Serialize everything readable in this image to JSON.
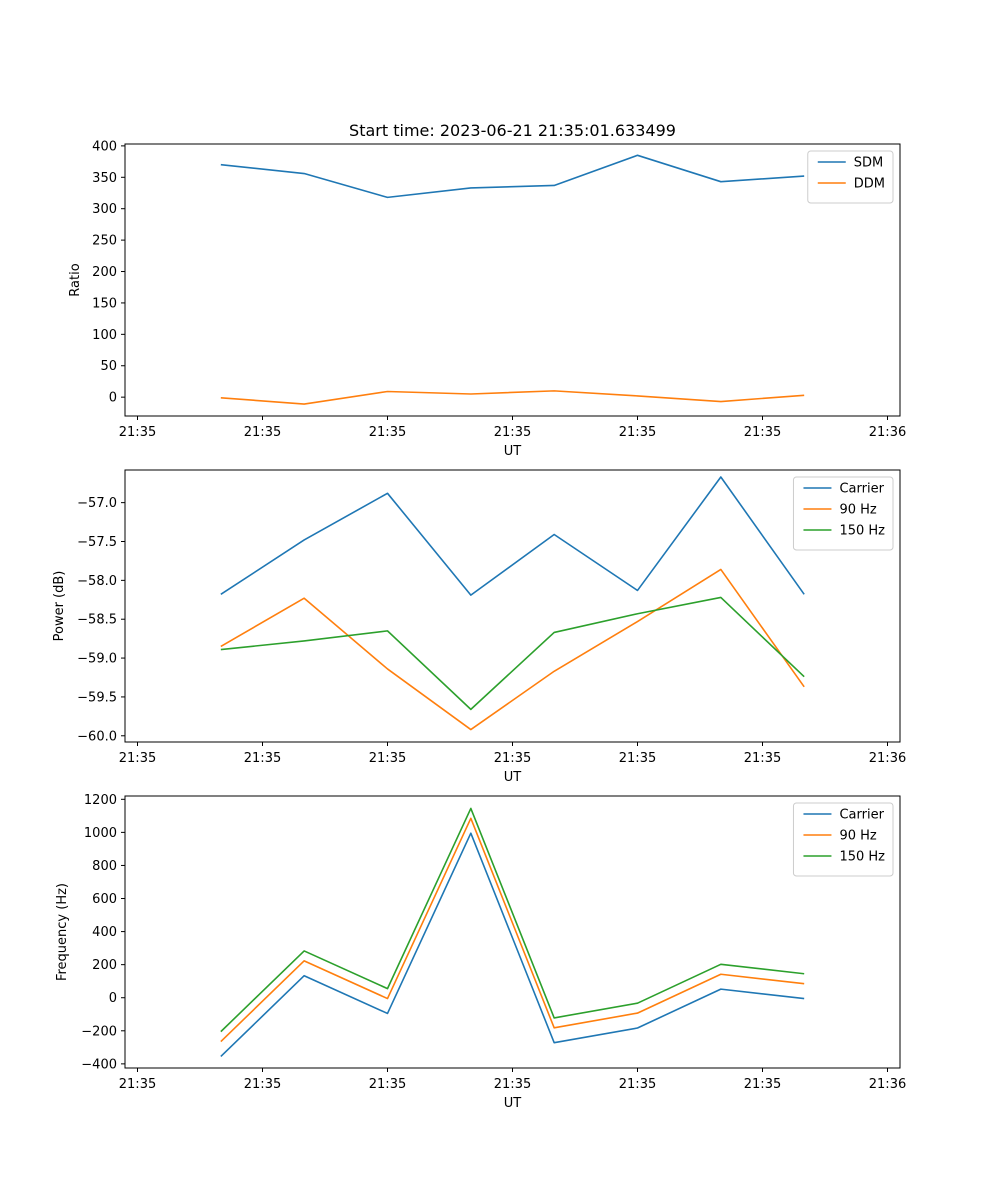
{
  "title": "Start time: 2023-06-21 21:35:01.633499",
  "chart_data": [
    {
      "type": "line",
      "xlabel": "UT",
      "ylabel": "Ratio",
      "x": [
        1,
        2,
        3,
        4,
        5,
        6,
        7,
        8
      ],
      "xlim": [
        -0.15,
        9.15
      ],
      "xticks": [
        0,
        1.5,
        3,
        4.5,
        6,
        7.5,
        9
      ],
      "xtick_labels": [
        "21:35",
        "21:35",
        "21:35",
        "21:35",
        "21:35",
        "21:35",
        "21:36"
      ],
      "ylim": [
        -30,
        403
      ],
      "yticks": [
        0,
        50,
        100,
        150,
        200,
        250,
        300,
        350,
        400
      ],
      "ytick_labels": [
        "0",
        "50",
        "100",
        "150",
        "200",
        "250",
        "300",
        "350",
        "400"
      ],
      "legend": "upper right",
      "series": [
        {
          "name": "SDM",
          "color": "#1f77b4",
          "values": [
            370,
            356,
            318,
            333,
            337,
            385,
            343,
            352
          ]
        },
        {
          "name": "DDM",
          "color": "#ff7f0e",
          "values": [
            -1,
            -11,
            9,
            5,
            10,
            2,
            -7,
            3
          ]
        }
      ]
    },
    {
      "type": "line",
      "xlabel": "UT",
      "ylabel": "Power (dB)",
      "x": [
        1,
        2,
        3,
        4,
        5,
        6,
        7,
        8
      ],
      "xlim": [
        -0.15,
        9.15
      ],
      "xticks": [
        0,
        1.5,
        3,
        4.5,
        6,
        7.5,
        9
      ],
      "xtick_labels": [
        "21:35",
        "21:35",
        "21:35",
        "21:35",
        "21:35",
        "21:35",
        "21:36"
      ],
      "ylim": [
        -60.08,
        -56.58
      ],
      "yticks": [
        -60.0,
        -59.5,
        -59.0,
        -58.5,
        -58.0,
        -57.5,
        -57.0
      ],
      "ytick_labels": [
        "−60.0",
        "−59.5",
        "−59.0",
        "−58.5",
        "−58.0",
        "−57.5",
        "−57.0"
      ],
      "legend": "upper right",
      "series": [
        {
          "name": "Carrier",
          "color": "#1f77b4",
          "values": [
            -58.18,
            -57.48,
            -56.88,
            -58.19,
            -57.41,
            -58.13,
            -56.67,
            -58.18
          ]
        },
        {
          "name": "90 Hz",
          "color": "#ff7f0e",
          "values": [
            -58.85,
            -58.23,
            -59.14,
            -59.92,
            -59.17,
            -58.53,
            -57.86,
            -59.37
          ]
        },
        {
          "name": "150 Hz",
          "color": "#2ca02c",
          "values": [
            -58.89,
            -58.78,
            -58.65,
            -59.66,
            -58.67,
            -58.43,
            -58.22,
            -59.24
          ]
        }
      ]
    },
    {
      "type": "line",
      "xlabel": "UT",
      "ylabel": "Frequency (Hz)",
      "x": [
        1,
        2,
        3,
        4,
        5,
        6,
        7,
        8
      ],
      "xlim": [
        -0.15,
        9.15
      ],
      "xticks": [
        0,
        1.5,
        3,
        4.5,
        6,
        7.5,
        9
      ],
      "xtick_labels": [
        "21:35",
        "21:35",
        "21:35",
        "21:35",
        "21:35",
        "21:35",
        "21:36"
      ],
      "ylim": [
        -425,
        1220
      ],
      "yticks": [
        -400,
        -200,
        0,
        200,
        400,
        600,
        800,
        1000,
        1200
      ],
      "ytick_labels": [
        "−400",
        "−200",
        "0",
        "200",
        "400",
        "600",
        "800",
        "1000",
        "1200"
      ],
      "legend": "upper right",
      "series": [
        {
          "name": "Carrier",
          "color": "#1f77b4",
          "values": [
            -355,
            133,
            -95,
            995,
            -272,
            -183,
            52,
            -5
          ]
        },
        {
          "name": "90 Hz",
          "color": "#ff7f0e",
          "values": [
            -265,
            223,
            -5,
            1085,
            -182,
            -93,
            142,
            85
          ]
        },
        {
          "name": "150 Hz",
          "color": "#2ca02c",
          "values": [
            -205,
            283,
            55,
            1145,
            -122,
            -33,
            202,
            145
          ]
        }
      ]
    }
  ]
}
